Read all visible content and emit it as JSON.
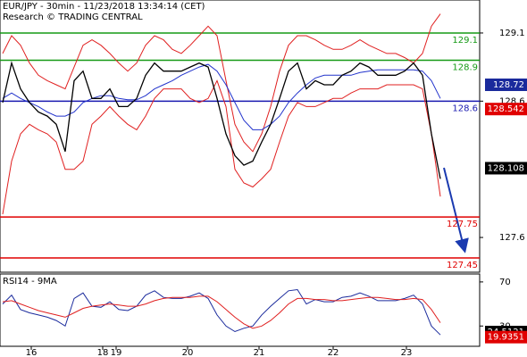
{
  "chart_data": [
    {
      "type": "line",
      "title": "EUR/JPY - 30min - 11/23/2018 13:34:14 (CET)",
      "subtitle": "Research © TRADING CENTRAL",
      "xlim": [
        -0.3,
        53.4
      ],
      "xticks": [
        {
          "value": 3.2,
          "label": "16"
        },
        {
          "value": 11.2,
          "label": "18"
        },
        {
          "value": 12.7,
          "label": "19"
        },
        {
          "value": 20.7,
          "label": "20"
        },
        {
          "value": 28.7,
          "label": "21"
        },
        {
          "value": 37,
          "label": "22"
        },
        {
          "value": 45.2,
          "label": "23"
        }
      ],
      "ylim": [
        127.345,
        129.342
      ],
      "yticks": [
        129.1,
        128.6,
        127.6
      ],
      "levels": [
        {
          "value": 129.1,
          "color": "#159a15"
        },
        {
          "value": 128.9,
          "color": "#159a15"
        },
        {
          "value": 128.6,
          "color": "#1a1ab0"
        },
        {
          "value": 127.75,
          "color": "#e00000"
        },
        {
          "value": 127.45,
          "color": "#e00000"
        }
      ],
      "tags": [
        {
          "value": 128.72,
          "color": "#1a2a9c"
        },
        {
          "value": 128.542,
          "color": "#e00000"
        },
        {
          "value": 128.108,
          "color": "#000000"
        }
      ],
      "series": [
        {
          "color": "#e02020",
          "values": [
            128.95,
            129.08,
            129.01,
            128.88,
            128.79,
            128.75,
            128.72,
            128.69,
            128.85,
            129.01,
            129.05,
            129.01,
            128.95,
            128.88,
            128.82,
            128.88,
            129.01,
            129.08,
            129.05,
            128.98,
            128.95,
            129.01,
            129.08,
            129.15,
            129.08,
            128.75,
            128.43,
            128.3,
            128.23,
            128.36,
            128.56,
            128.82,
            129.01,
            129.08,
            129.08,
            129.05,
            129.01,
            128.98,
            128.98,
            129.01,
            129.05,
            129.01,
            128.98,
            128.95,
            128.95,
            128.92,
            128.88,
            128.95,
            129.15,
            129.24
          ]
        },
        {
          "color": "#e02020",
          "values": [
            127.77,
            128.16,
            128.36,
            128.43,
            128.39,
            128.36,
            128.3,
            128.1,
            128.1,
            128.16,
            128.43,
            128.49,
            128.56,
            128.49,
            128.43,
            128.39,
            128.49,
            128.62,
            128.69,
            128.69,
            128.69,
            128.62,
            128.59,
            128.62,
            128.75,
            128.56,
            128.1,
            128.0,
            127.97,
            128.03,
            128.1,
            128.3,
            128.49,
            128.59,
            128.56,
            128.56,
            128.59,
            128.62,
            128.62,
            128.66,
            128.69,
            128.69,
            128.69,
            128.72,
            128.72,
            128.72,
            128.72,
            128.69,
            128.36,
            127.9
          ]
        },
        {
          "color": "#2233cc",
          "values": [
            128.62,
            128.66,
            128.62,
            128.59,
            128.56,
            128.52,
            128.49,
            128.49,
            128.52,
            128.59,
            128.62,
            128.64,
            128.64,
            128.62,
            128.61,
            128.61,
            128.64,
            128.69,
            128.72,
            128.75,
            128.79,
            128.82,
            128.85,
            128.87,
            128.82,
            128.72,
            128.59,
            128.46,
            128.39,
            128.39,
            128.43,
            128.49,
            128.59,
            128.66,
            128.72,
            128.77,
            128.79,
            128.79,
            128.79,
            128.79,
            128.81,
            128.82,
            128.83,
            128.83,
            128.83,
            128.83,
            128.83,
            128.82,
            128.75,
            128.62
          ]
        },
        {
          "color": "#000000",
          "values": [
            128.59,
            128.88,
            128.69,
            128.59,
            128.52,
            128.49,
            128.43,
            128.23,
            128.75,
            128.82,
            128.62,
            128.62,
            128.69,
            128.56,
            128.56,
            128.62,
            128.79,
            128.88,
            128.82,
            128.82,
            128.82,
            128.85,
            128.88,
            128.85,
            128.62,
            128.36,
            128.2,
            128.13,
            128.16,
            128.3,
            128.43,
            128.62,
            128.82,
            128.88,
            128.69,
            128.75,
            128.72,
            128.72,
            128.79,
            128.82,
            128.88,
            128.85,
            128.79,
            128.79,
            128.79,
            128.82,
            128.88,
            128.79,
            128.36,
            128.03
          ]
        }
      ]
    },
    {
      "type": "line",
      "title": "RSI14 - 9MA",
      "xlim": [
        -0.3,
        53.4
      ],
      "ylim": [
        11.6,
        77.2
      ],
      "yticks": [
        70,
        30
      ],
      "tags": [
        {
          "value": 24.5121,
          "color": "#000000"
        },
        {
          "value": 19.9351,
          "color": "#e00000"
        }
      ],
      "series": [
        {
          "color": "#1a2a9c",
          "values": [
            50,
            58,
            45,
            42,
            40,
            38,
            35,
            30,
            55,
            60,
            48,
            47,
            52,
            45,
            44,
            48,
            58,
            62,
            56,
            55,
            55,
            57,
            60,
            55,
            40,
            30,
            25,
            28,
            30,
            40,
            48,
            55,
            62,
            63,
            50,
            54,
            52,
            52,
            56,
            57,
            60,
            57,
            53,
            53,
            53,
            55,
            58,
            50,
            30,
            22
          ]
        },
        {
          "color": "#e02020",
          "values": [
            52,
            53,
            50,
            47,
            44,
            42,
            40,
            38,
            42,
            46,
            48,
            49,
            50,
            49,
            48,
            48,
            50,
            53,
            55,
            56,
            56,
            56,
            57,
            57,
            52,
            45,
            38,
            32,
            28,
            30,
            35,
            42,
            50,
            55,
            55,
            54,
            54,
            53,
            53,
            54,
            55,
            56,
            56,
            55,
            54,
            54,
            55,
            54,
            45,
            33
          ]
        }
      ]
    }
  ]
}
